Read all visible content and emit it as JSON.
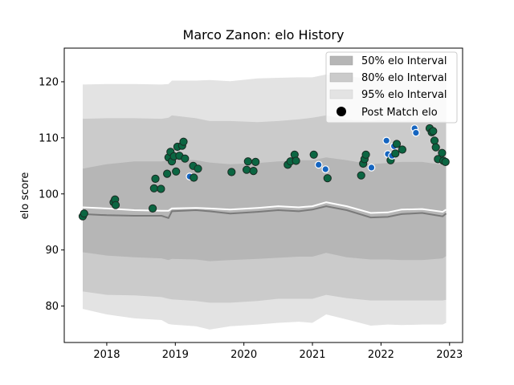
{
  "chart_data": {
    "type": "scatter",
    "title": "Marco Zanon: elo History",
    "xlabel": "",
    "ylabel": "elo score",
    "xlim": [
      2017.38,
      2023.19
    ],
    "ylim": [
      73.5,
      126
    ],
    "x_ticks": [
      2018,
      2019,
      2020,
      2021,
      2022,
      2023
    ],
    "x_tick_labels": [
      "2018",
      "2019",
      "2020",
      "2021",
      "2022",
      "2023"
    ],
    "y_ticks": [
      80,
      90,
      100,
      110,
      120
    ],
    "y_tick_labels": [
      "80",
      "90",
      "100",
      "110",
      "120"
    ],
    "grid": false,
    "legend_position": "top-right",
    "legend": {
      "i50": "50% elo Interval",
      "i80": "80% elo Interval",
      "i95": "95% elo Interval",
      "post": "Post Match elo"
    },
    "colors": {
      "band95": "#e3e3e3",
      "band80": "#cbcbcb",
      "band50": "#b6b6b6",
      "median_line": "#7a7a7a",
      "mean_line": "#ffffff",
      "win_marker": "#0b6642",
      "loss_marker": "#1565c0",
      "marker_edge_win": "#1a2a22",
      "marker_edge_loss": "#ffffff"
    },
    "bands": {
      "x": [
        2017.65,
        2018.0,
        2018.4,
        2018.8,
        2018.9,
        2018.95,
        2019.3,
        2019.5,
        2019.8,
        2020.2,
        2020.5,
        2020.8,
        2021.0,
        2021.2,
        2021.5,
        2021.85,
        2022.1,
        2022.3,
        2022.6,
        2022.9,
        2022.95
      ],
      "p95_hi": [
        119.5,
        119.6,
        119.6,
        119.5,
        119.6,
        120.2,
        120.2,
        120.3,
        120.1,
        120.6,
        120.7,
        120.8,
        120.8,
        121.3,
        121.0,
        120.5,
        120.6,
        121.0,
        121.3,
        121.2,
        121.2
      ],
      "p95_lo": [
        79.5,
        78.5,
        77.8,
        77.5,
        76.8,
        76.7,
        76.4,
        75.8,
        76.4,
        76.7,
        77.0,
        77.2,
        77.0,
        78.5,
        77.6,
        76.5,
        76.7,
        76.6,
        76.7,
        76.7,
        77.0
      ],
      "p80_hi": [
        113.4,
        113.5,
        113.5,
        113.4,
        113.6,
        114.0,
        113.5,
        113.0,
        113.0,
        112.8,
        113.0,
        113.3,
        113.6,
        114.0,
        113.2,
        113.0,
        113.2,
        113.0,
        113.2,
        113.0,
        113.0
      ],
      "p80_lo": [
        82.6,
        82.0,
        81.9,
        81.6,
        81.3,
        81.2,
        80.9,
        80.6,
        80.6,
        80.9,
        81.3,
        81.3,
        81.3,
        82.0,
        81.4,
        81.0,
        81.0,
        81.0,
        81.0,
        81.0,
        81.1
      ],
      "p50_hi": [
        104.5,
        105.3,
        105.8,
        105.8,
        106.0,
        106.3,
        106.0,
        105.6,
        105.3,
        105.5,
        105.8,
        106.0,
        106.0,
        106.5,
        106.0,
        105.3,
        105.5,
        105.7,
        105.7,
        105.2,
        105.0
      ],
      "p50_lo": [
        89.6,
        89.0,
        88.7,
        88.5,
        88.2,
        88.4,
        88.3,
        88.0,
        88.2,
        88.4,
        88.6,
        88.8,
        88.8,
        89.5,
        88.7,
        88.3,
        88.3,
        88.2,
        88.2,
        88.5,
        88.9
      ],
      "median": [
        96.4,
        96.2,
        96.1,
        96.1,
        95.7,
        96.9,
        97.1,
        96.9,
        96.5,
        96.8,
        97.1,
        96.9,
        97.2,
        97.8,
        97.1,
        95.8,
        95.9,
        96.4,
        96.6,
        96.0,
        96.5
      ],
      "mean": [
        97.6,
        97.4,
        97.1,
        97.0,
        97.0,
        97.4,
        97.5,
        97.4,
        97.2,
        97.5,
        97.8,
        97.6,
        97.8,
        98.5,
        97.8,
        96.6,
        96.7,
        97.2,
        97.3,
        96.8,
        97.2
      ]
    },
    "series": [
      {
        "name": "Post Match elo",
        "points": [
          {
            "x": 2017.65,
            "y": 96.0,
            "r": "win"
          },
          {
            "x": 2017.67,
            "y": 96.5,
            "r": "win"
          },
          {
            "x": 2018.1,
            "y": 98.5,
            "r": "win"
          },
          {
            "x": 2018.12,
            "y": 99.0,
            "r": "win"
          },
          {
            "x": 2018.13,
            "y": 98.0,
            "r": "win"
          },
          {
            "x": 2018.67,
            "y": 97.4,
            "r": "win"
          },
          {
            "x": 2018.69,
            "y": 101.0,
            "r": "win"
          },
          {
            "x": 2018.71,
            "y": 102.7,
            "r": "win"
          },
          {
            "x": 2018.79,
            "y": 100.9,
            "r": "win"
          },
          {
            "x": 2018.88,
            "y": 103.6,
            "r": "win"
          },
          {
            "x": 2018.9,
            "y": 106.5,
            "r": "win"
          },
          {
            "x": 2018.93,
            "y": 107.5,
            "r": "win"
          },
          {
            "x": 2018.95,
            "y": 105.8,
            "r": "win"
          },
          {
            "x": 2018.98,
            "y": 106.7,
            "r": "win"
          },
          {
            "x": 2019.01,
            "y": 104.0,
            "r": "win"
          },
          {
            "x": 2019.03,
            "y": 108.4,
            "r": "win"
          },
          {
            "x": 2019.06,
            "y": 106.8,
            "r": "win"
          },
          {
            "x": 2019.1,
            "y": 108.6,
            "r": "win"
          },
          {
            "x": 2019.12,
            "y": 109.3,
            "r": "win"
          },
          {
            "x": 2019.14,
            "y": 106.3,
            "r": "win"
          },
          {
            "x": 2019.21,
            "y": 103.1,
            "r": "loss"
          },
          {
            "x": 2019.26,
            "y": 105.0,
            "r": "win"
          },
          {
            "x": 2019.27,
            "y": 102.9,
            "r": "win"
          },
          {
            "x": 2019.33,
            "y": 104.5,
            "r": "win"
          },
          {
            "x": 2019.82,
            "y": 103.9,
            "r": "win"
          },
          {
            "x": 2020.04,
            "y": 104.3,
            "r": "win"
          },
          {
            "x": 2020.06,
            "y": 105.8,
            "r": "win"
          },
          {
            "x": 2020.14,
            "y": 104.1,
            "r": "win"
          },
          {
            "x": 2020.17,
            "y": 105.7,
            "r": "win"
          },
          {
            "x": 2020.64,
            "y": 105.2,
            "r": "win"
          },
          {
            "x": 2020.68,
            "y": 105.8,
            "r": "win"
          },
          {
            "x": 2020.74,
            "y": 107.0,
            "r": "win"
          },
          {
            "x": 2020.76,
            "y": 105.9,
            "r": "win"
          },
          {
            "x": 2021.02,
            "y": 107.0,
            "r": "win"
          },
          {
            "x": 2021.09,
            "y": 105.2,
            "r": "loss"
          },
          {
            "x": 2021.19,
            "y": 104.4,
            "r": "loss"
          },
          {
            "x": 2021.22,
            "y": 102.8,
            "r": "win"
          },
          {
            "x": 2021.71,
            "y": 103.3,
            "r": "win"
          },
          {
            "x": 2021.74,
            "y": 105.4,
            "r": "win"
          },
          {
            "x": 2021.76,
            "y": 106.2,
            "r": "win"
          },
          {
            "x": 2021.78,
            "y": 107.0,
            "r": "win"
          },
          {
            "x": 2021.86,
            "y": 104.7,
            "r": "loss"
          },
          {
            "x": 2022.08,
            "y": 109.5,
            "r": "loss"
          },
          {
            "x": 2022.1,
            "y": 107.1,
            "r": "loss"
          },
          {
            "x": 2022.14,
            "y": 106.0,
            "r": "win"
          },
          {
            "x": 2022.16,
            "y": 106.8,
            "r": "loss"
          },
          {
            "x": 2022.19,
            "y": 108.5,
            "r": "loss"
          },
          {
            "x": 2022.21,
            "y": 107.2,
            "r": "win"
          },
          {
            "x": 2022.23,
            "y": 108.9,
            "r": "win"
          },
          {
            "x": 2022.31,
            "y": 107.9,
            "r": "win"
          },
          {
            "x": 2022.49,
            "y": 111.7,
            "r": "loss"
          },
          {
            "x": 2022.51,
            "y": 110.9,
            "r": "loss"
          },
          {
            "x": 2022.71,
            "y": 111.7,
            "r": "win"
          },
          {
            "x": 2022.74,
            "y": 111.0,
            "r": "win"
          },
          {
            "x": 2022.76,
            "y": 111.2,
            "r": "win"
          },
          {
            "x": 2022.78,
            "y": 109.5,
            "r": "win"
          },
          {
            "x": 2022.8,
            "y": 108.3,
            "r": "win"
          },
          {
            "x": 2022.83,
            "y": 106.2,
            "r": "win"
          },
          {
            "x": 2022.89,
            "y": 107.3,
            "r": "win"
          },
          {
            "x": 2022.91,
            "y": 105.9,
            "r": "win"
          },
          {
            "x": 2022.94,
            "y": 105.7,
            "r": "win"
          }
        ]
      }
    ]
  }
}
